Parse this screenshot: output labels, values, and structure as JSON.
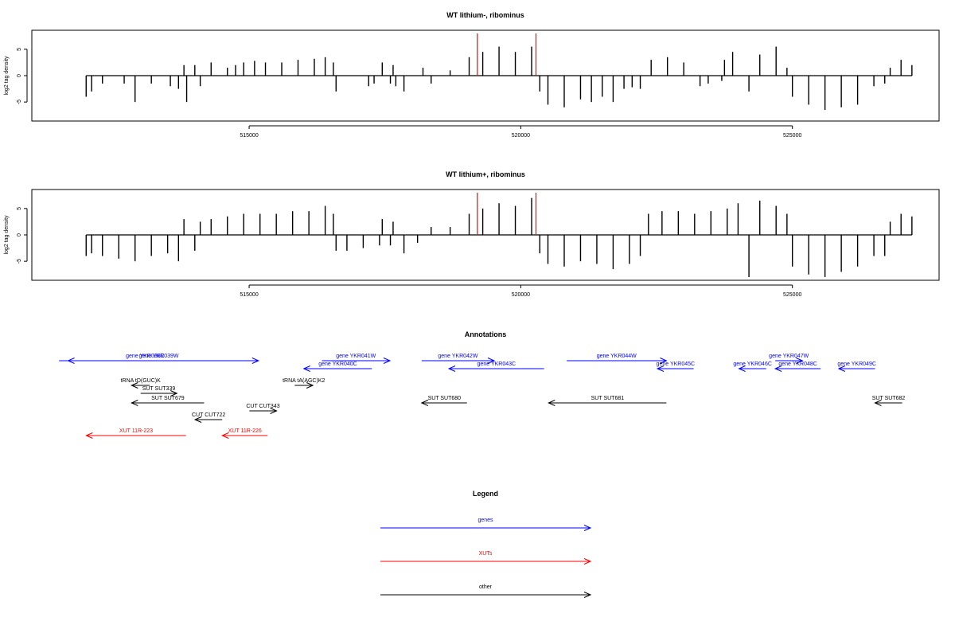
{
  "colors": {
    "gene": "#0000ff",
    "xut": "#ff0000",
    "other": "#000000",
    "marker": "#ff0000"
  },
  "chart_data": [
    {
      "type": "bar",
      "title": "WT lithium-, ribominus",
      "xlabel": "",
      "ylabel": "log2 tag density",
      "xlim": [
        511000,
        527700
      ],
      "ylim": [
        -8.6,
        8.6
      ],
      "x_ticks": [
        515000,
        520000,
        525000
      ],
      "x_tick_labels": [
        "515000",
        "520000",
        "525000"
      ],
      "y_ticks": [
        -5,
        0,
        5
      ],
      "y_tick_labels": [
        "-5",
        "0",
        "5"
      ],
      "grid": false,
      "markers_x": [
        519200,
        520280
      ],
      "series": [
        {
          "values": [
            [
              512000,
              -4
            ],
            [
              512100,
              -3
            ],
            [
              512300,
              -1.5
            ],
            [
              512700,
              -1.5
            ],
            [
              512900,
              -5
            ],
            [
              513200,
              -1.5
            ],
            [
              513550,
              -2
            ],
            [
              513700,
              -2.5
            ],
            [
              513800,
              2
            ],
            [
              513850,
              -5
            ],
            [
              514000,
              2
            ],
            [
              514100,
              -2
            ],
            [
              514300,
              2.5
            ],
            [
              514600,
              1.5
            ],
            [
              514750,
              2
            ],
            [
              514900,
              2.5
            ],
            [
              515100,
              2.8
            ],
            [
              515300,
              2.5
            ],
            [
              515600,
              2.5
            ],
            [
              515900,
              3
            ],
            [
              516200,
              3.2
            ],
            [
              516400,
              3.5
            ],
            [
              516550,
              2.5
            ],
            [
              516600,
              -3
            ],
            [
              517200,
              -2
            ],
            [
              517300,
              -1.5
            ],
            [
              517450,
              2.5
            ],
            [
              517600,
              -1.5
            ],
            [
              517650,
              2
            ],
            [
              517700,
              -2
            ],
            [
              517850,
              -3
            ],
            [
              518200,
              1.5
            ],
            [
              518350,
              -1.5
            ],
            [
              518700,
              1
            ],
            [
              519050,
              3.5
            ],
            [
              519300,
              4.5
            ],
            [
              519600,
              5.5
            ],
            [
              519900,
              4.5
            ],
            [
              520200,
              5.5
            ],
            [
              520350,
              -3
            ],
            [
              520500,
              -5.5
            ],
            [
              520800,
              -6
            ],
            [
              521100,
              -4.5
            ],
            [
              521300,
              -5
            ],
            [
              521500,
              -4
            ],
            [
              521700,
              -5
            ],
            [
              521900,
              -2.5
            ],
            [
              522050,
              -2.2
            ],
            [
              522200,
              -2.5
            ],
            [
              522400,
              3
            ],
            [
              522700,
              3.5
            ],
            [
              523000,
              2.5
            ],
            [
              523300,
              -2
            ],
            [
              523450,
              -1.5
            ],
            [
              523700,
              -1
            ],
            [
              523750,
              3
            ],
            [
              523900,
              4.5
            ],
            [
              524200,
              -3
            ],
            [
              524400,
              4
            ],
            [
              524700,
              5.5
            ],
            [
              524900,
              1.5
            ],
            [
              525000,
              -4
            ],
            [
              525300,
              -5.5
            ],
            [
              525600,
              -6.5
            ],
            [
              525900,
              -6
            ],
            [
              526200,
              -5.5
            ],
            [
              526500,
              -2
            ],
            [
              526700,
              -1.5
            ],
            [
              526800,
              1.5
            ],
            [
              527000,
              3
            ],
            [
              527200,
              2
            ]
          ]
        }
      ]
    },
    {
      "type": "bar",
      "title": "WT lithium+, ribominus",
      "xlabel": "",
      "ylabel": "log2 tag density",
      "xlim": [
        511000,
        527700
      ],
      "ylim": [
        -8.6,
        8.6
      ],
      "x_ticks": [
        515000,
        520000,
        525000
      ],
      "x_tick_labels": [
        "515000",
        "520000",
        "525000"
      ],
      "y_ticks": [
        -5,
        0,
        5
      ],
      "y_tick_labels": [
        "-5",
        "0",
        "5"
      ],
      "grid": false,
      "markers_x": [
        519200,
        520280
      ],
      "series": [
        {
          "values": [
            [
              512000,
              -4
            ],
            [
              512100,
              -3.5
            ],
            [
              512300,
              -4
            ],
            [
              512600,
              -4.5
            ],
            [
              512900,
              -5
            ],
            [
              513200,
              -4
            ],
            [
              513500,
              -3.5
            ],
            [
              513700,
              -5
            ],
            [
              513800,
              3
            ],
            [
              514000,
              -3
            ],
            [
              514100,
              2.5
            ],
            [
              514300,
              3
            ],
            [
              514600,
              3.5
            ],
            [
              514900,
              4
            ],
            [
              515200,
              4
            ],
            [
              515500,
              4
            ],
            [
              515800,
              4.5
            ],
            [
              516100,
              4.5
            ],
            [
              516400,
              5.5
            ],
            [
              516550,
              4
            ],
            [
              516600,
              -3
            ],
            [
              516800,
              -3
            ],
            [
              517100,
              -2.5
            ],
            [
              517400,
              -2
            ],
            [
              517450,
              3
            ],
            [
              517600,
              -2
            ],
            [
              517650,
              2.5
            ],
            [
              517850,
              -3.5
            ],
            [
              518100,
              -1.5
            ],
            [
              518350,
              1.5
            ],
            [
              518700,
              1.5
            ],
            [
              519050,
              4
            ],
            [
              519300,
              5
            ],
            [
              519600,
              6
            ],
            [
              519900,
              5.5
            ],
            [
              520200,
              7
            ],
            [
              520350,
              -3.5
            ],
            [
              520500,
              -5.5
            ],
            [
              520800,
              -6
            ],
            [
              521100,
              -5
            ],
            [
              521400,
              -5.5
            ],
            [
              521700,
              -6.5
            ],
            [
              522000,
              -5.5
            ],
            [
              522200,
              -4
            ],
            [
              522350,
              4
            ],
            [
              522600,
              4.5
            ],
            [
              522900,
              4.5
            ],
            [
              523200,
              4
            ],
            [
              523500,
              4.5
            ],
            [
              523800,
              5
            ],
            [
              524000,
              6
            ],
            [
              524200,
              -8
            ],
            [
              524400,
              6.5
            ],
            [
              524700,
              5.5
            ],
            [
              524900,
              4
            ],
            [
              525000,
              -6
            ],
            [
              525300,
              -7.5
            ],
            [
              525600,
              -8
            ],
            [
              525900,
              -7
            ],
            [
              526200,
              -6
            ],
            [
              526500,
              -4
            ],
            [
              526700,
              -4
            ],
            [
              526800,
              2.5
            ],
            [
              527000,
              4
            ],
            [
              527200,
              3.5
            ]
          ]
        }
      ]
    }
  ],
  "annotations": {
    "title": "Annotations",
    "items": [
      {
        "label": "gene YKR038C",
        "kind": "gene",
        "start": 527700,
        "end": 526000,
        "row": 0
      },
      {
        "label": "gene YKR039W",
        "kind": "gene",
        "start": 525900,
        "end": 528100,
        "row": 0
      },
      {
        "label": "gene YKR041W",
        "kind": "gene",
        "start": 528800,
        "end": 529550,
        "row": 0
      },
      {
        "label": "gene YKR040C",
        "kind": "gene",
        "start": 529350,
        "end": 528600,
        "row": 1
      },
      {
        "label": "gene YKR042W",
        "kind": "gene",
        "start": 529900,
        "end": 530700,
        "row": 0
      },
      {
        "label": "gene YKR043C",
        "kind": "gene",
        "start": 531250,
        "end": 530200,
        "row": 1
      },
      {
        "label": "gene YKR044W",
        "kind": "gene",
        "start": 531500,
        "end": 532600,
        "row": 0
      },
      {
        "label": "gene YKR045C",
        "kind": "gene",
        "start": 532900,
        "end": 532500,
        "row": 1
      },
      {
        "label": "gene YKR046C",
        "kind": "gene",
        "start": 533700,
        "end": 533400,
        "row": 1
      },
      {
        "label": "gene YKR047W",
        "kind": "gene",
        "start": 533800,
        "end": 534100,
        "row": 0
      },
      {
        "label": "gene YKR048C",
        "kind": "gene",
        "start": 534300,
        "end": 533800,
        "row": 1
      },
      {
        "label": "gene YKR049C",
        "kind": "gene",
        "start": 534900,
        "end": 534500,
        "row": 1
      },
      {
        "label": "tRNA tD(GUC)K",
        "kind": "other",
        "start": 526900,
        "end": 526700,
        "row": 2
      },
      {
        "label": "tRNA tA(AGC)K2",
        "kind": "other",
        "start": 528500,
        "end": 528700,
        "row": 2
      },
      {
        "label": "SUT SUT339",
        "kind": "other",
        "start": 526800,
        "end": 527200,
        "row": 3
      },
      {
        "label": "SUT SUT679",
        "kind": "other",
        "start": 527500,
        "end": 526700,
        "row": 4
      },
      {
        "label": "SUT SUT680",
        "kind": "other",
        "start": 530400,
        "end": 529900,
        "row": 4
      },
      {
        "label": "SUT SUT681",
        "kind": "other",
        "start": 532600,
        "end": 531300,
        "row": 4
      },
      {
        "label": "SUT SUT682",
        "kind": "other",
        "start": 535200,
        "end": 534900,
        "row": 4
      },
      {
        "label": "CUT CUT343",
        "kind": "other",
        "start": 528000,
        "end": 528300,
        "row": 5
      },
      {
        "label": "CUT CUT722",
        "kind": "other",
        "start": 527700,
        "end": 527400,
        "row": 6
      },
      {
        "label": "XUT 11R-223",
        "kind": "xut",
        "start": 527300,
        "end": 526200,
        "row": 7
      },
      {
        "label": "XUT 11R-226",
        "kind": "xut",
        "start": 528200,
        "end": 527700,
        "row": 7
      }
    ]
  },
  "legend": {
    "title": "Legend",
    "entries": [
      {
        "label": "genes",
        "kind": "gene"
      },
      {
        "label": "XUTs",
        "kind": "xut"
      },
      {
        "label": "other",
        "kind": "other"
      }
    ]
  }
}
